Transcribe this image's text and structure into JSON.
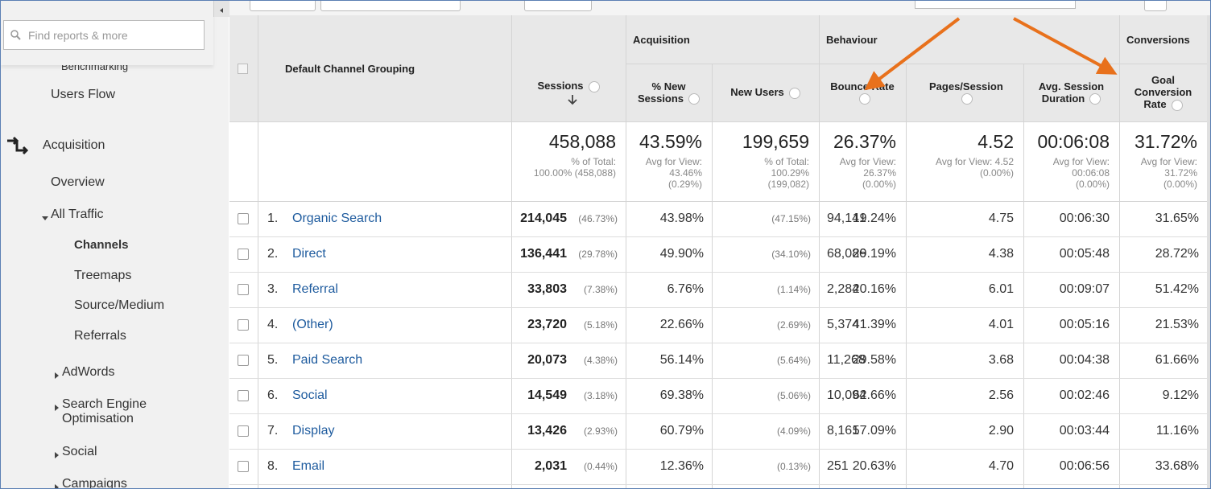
{
  "sidebar": {
    "search_placeholder": "Find reports & more",
    "items": [
      "Benchmarking",
      "Users Flow",
      "Acquisition",
      "Overview",
      "All Traffic",
      "Channels",
      "Treemaps",
      "Source/Medium",
      "Referrals",
      "AdWords",
      "Search Engine Optimisation",
      "Social",
      "Campaigns"
    ]
  },
  "table": {
    "groups": [
      "Acquisition",
      "Behaviour",
      "Conversions"
    ],
    "columns": [
      "Default Channel Grouping",
      "Sessions",
      "% New Sessions",
      "New Users",
      "Bounce Rate",
      "Pages/Session",
      "Avg. Session Duration",
      "Goal Conversion Rate"
    ],
    "totals": [
      {
        "main": "458,088",
        "sub": [
          "% of Total:",
          "100.00% (458,088)"
        ]
      },
      {
        "main": "43.59%",
        "sub": [
          "Avg for View:",
          "43.46%",
          "(0.29%)"
        ]
      },
      {
        "main": "199,659",
        "sub": [
          "% of Total:",
          "100.29%",
          "(199,082)"
        ]
      },
      {
        "main": "26.37%",
        "sub": [
          "Avg for View:",
          "26.37%",
          "(0.00%)"
        ]
      },
      {
        "main": "4.52",
        "sub": [
          "Avg for View: 4.52",
          "(0.00%)"
        ]
      },
      {
        "main": "00:06:08",
        "sub": [
          "Avg for View:",
          "00:06:08",
          "(0.00%)"
        ]
      },
      {
        "main": "31.72%",
        "sub": [
          "Avg for View:",
          "31.72%",
          "(0.00%)"
        ]
      }
    ],
    "rows": [
      [
        "1.",
        "Organic Search",
        "214,045",
        "(46.73%)",
        "43.98%",
        "94,141",
        "(47.15%)",
        "19.24%",
        "4.75",
        "00:06:30",
        "31.65%"
      ],
      [
        "2.",
        "Direct",
        "136,441",
        "(29.78%)",
        "49.90%",
        "68,086",
        "(34.10%)",
        "29.19%",
        "4.38",
        "00:05:48",
        "28.72%"
      ],
      [
        "3.",
        "Referral",
        "33,803",
        "(7.38%)",
        "6.76%",
        "2,284",
        "(1.14%)",
        "20.16%",
        "6.01",
        "00:09:07",
        "51.42%"
      ],
      [
        "4.",
        "(Other)",
        "23,720",
        "(5.18%)",
        "22.66%",
        "5,374",
        "(2.69%)",
        "41.39%",
        "4.01",
        "00:05:16",
        "21.53%"
      ],
      [
        "5.",
        "Paid Search",
        "20,073",
        "(4.38%)",
        "56.14%",
        "11,268",
        "(5.64%)",
        "29.58%",
        "3.68",
        "00:04:38",
        "61.66%"
      ],
      [
        "6.",
        "Social",
        "14,549",
        "(3.18%)",
        "69.38%",
        "10,094",
        "(5.06%)",
        "62.66%",
        "2.56",
        "00:02:46",
        "9.12%"
      ],
      [
        "7.",
        "Display",
        "13,426",
        "(2.93%)",
        "60.79%",
        "8,161",
        "(4.09%)",
        "57.09%",
        "2.90",
        "00:03:44",
        "11.16%"
      ],
      [
        "8.",
        "Email",
        "2,031",
        "(0.44%)",
        "12.36%",
        "251",
        "(0.13%)",
        "20.63%",
        "4.70",
        "00:06:56",
        "33.68%"
      ]
    ]
  }
}
